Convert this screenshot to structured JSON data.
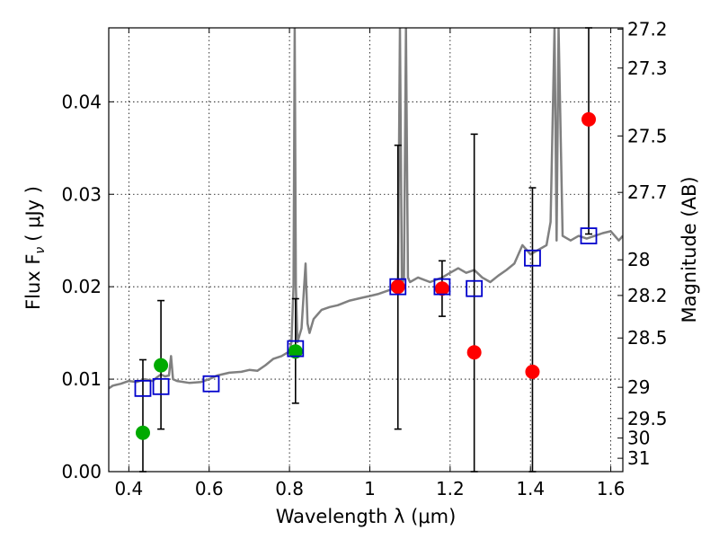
{
  "chart_data": {
    "type": "scatter",
    "xlabel": "Wavelength  λ (μm)",
    "ylabel": "Flux  F",
    "ylabel_sub": "ν",
    "ylabel_unit": "( μJy )",
    "ylabel_right": "Magnitude (AB)",
    "xlim": [
      0.35,
      1.63
    ],
    "ylim": [
      0.0,
      0.048
    ],
    "grid": true,
    "x_ticks": [
      0.4,
      0.6,
      0.8,
      1.0,
      1.2,
      1.4,
      1.6
    ],
    "x_tick_labels": [
      "0.4",
      "0.6",
      "0.8",
      "1",
      "1.2",
      "1.4",
      "1.6"
    ],
    "y_ticks": [
      0.0,
      0.01,
      0.02,
      0.03,
      0.04
    ],
    "y_tick_labels": [
      "0.00",
      "0.01",
      "0.02",
      "0.03",
      "0.04"
    ],
    "mag_ticks": [
      27.2,
      27.3,
      27.5,
      27.7,
      28,
      28.2,
      28.5,
      29,
      29.5,
      30,
      31
    ],
    "mag_tick_labels": [
      "27.2",
      "27.3",
      "27.5",
      "27.7",
      "28",
      "28.2",
      "28.5",
      "29",
      "29.5",
      "30",
      "31"
    ],
    "colors": {
      "model": "#808080",
      "green": "#00aa00",
      "red": "#ff0000",
      "box": "#0000cc",
      "error": "#000000"
    },
    "model_spectrum": {
      "x": [
        0.35,
        0.36,
        0.38,
        0.4,
        0.42,
        0.44,
        0.46,
        0.47,
        0.48,
        0.49,
        0.5,
        0.505,
        0.51,
        0.52,
        0.55,
        0.58,
        0.6,
        0.62,
        0.65,
        0.68,
        0.7,
        0.72,
        0.74,
        0.76,
        0.78,
        0.8,
        0.805,
        0.81,
        0.813,
        0.816,
        0.82,
        0.83,
        0.84,
        0.845,
        0.85,
        0.86,
        0.87,
        0.88,
        0.9,
        0.92,
        0.95,
        0.98,
        1.0,
        1.02,
        1.04,
        1.06,
        1.07,
        1.075,
        1.08,
        1.085,
        1.09,
        1.095,
        1.1,
        1.12,
        1.15,
        1.18,
        1.2,
        1.22,
        1.24,
        1.26,
        1.28,
        1.3,
        1.32,
        1.34,
        1.36,
        1.38,
        1.39,
        1.4,
        1.42,
        1.44,
        1.45,
        1.46,
        1.465,
        1.47,
        1.48,
        1.5,
        1.52,
        1.54,
        1.56,
        1.58,
        1.6,
        1.62,
        1.63
      ],
      "y": [
        0.009,
        0.0093,
        0.0095,
        0.0098,
        0.0097,
        0.01,
        0.0098,
        0.0102,
        0.0105,
        0.0103,
        0.0104,
        0.0125,
        0.01,
        0.0098,
        0.0096,
        0.0097,
        0.01,
        0.0104,
        0.0107,
        0.0108,
        0.011,
        0.0109,
        0.0115,
        0.0122,
        0.0125,
        0.013,
        0.014,
        0.02,
        0.048,
        0.02,
        0.014,
        0.0155,
        0.0225,
        0.016,
        0.015,
        0.0165,
        0.017,
        0.0175,
        0.0178,
        0.018,
        0.0185,
        0.0188,
        0.019,
        0.0192,
        0.0195,
        0.0198,
        0.02,
        0.048,
        0.02,
        0.021,
        0.048,
        0.021,
        0.0205,
        0.021,
        0.0205,
        0.021,
        0.0215,
        0.022,
        0.0215,
        0.0218,
        0.021,
        0.0205,
        0.0212,
        0.0218,
        0.0225,
        0.0245,
        0.024,
        0.0235,
        0.024,
        0.0245,
        0.027,
        0.048,
        0.025,
        0.048,
        0.0255,
        0.025,
        0.0255,
        0.0252,
        0.0255,
        0.0258,
        0.026,
        0.025,
        0.0255
      ]
    },
    "error_bars": [
      {
        "x": 0.435,
        "lo": 0.0,
        "hi": 0.0121
      },
      {
        "x": 0.48,
        "lo": 0.0046,
        "hi": 0.0185
      },
      {
        "x": 0.815,
        "lo": 0.0074,
        "hi": 0.0187
      },
      {
        "x": 1.07,
        "lo": 0.0046,
        "hi": 0.0353
      },
      {
        "x": 1.18,
        "lo": 0.0168,
        "hi": 0.0228
      },
      {
        "x": 1.26,
        "lo": 0.0,
        "hi": 0.0365
      },
      {
        "x": 1.405,
        "lo": 0.0,
        "hi": 0.0307
      },
      {
        "x": 1.545,
        "lo": 0.0257,
        "hi": 0.048
      }
    ],
    "green_points": [
      {
        "x": 0.435,
        "y": 0.0042
      },
      {
        "x": 0.48,
        "y": 0.0115
      },
      {
        "x": 0.815,
        "y": 0.013
      }
    ],
    "red_points": [
      {
        "x": 1.07,
        "y": 0.02
      },
      {
        "x": 1.18,
        "y": 0.0198
      },
      {
        "x": 1.26,
        "y": 0.0129
      },
      {
        "x": 1.405,
        "y": 0.0108
      },
      {
        "x": 1.545,
        "y": 0.0381
      }
    ],
    "model_boxes": [
      {
        "x": 0.435,
        "y": 0.009
      },
      {
        "x": 0.48,
        "y": 0.0092
      },
      {
        "x": 0.605,
        "y": 0.0095
      },
      {
        "x": 0.815,
        "y": 0.0133
      },
      {
        "x": 1.07,
        "y": 0.02
      },
      {
        "x": 1.18,
        "y": 0.02
      },
      {
        "x": 1.26,
        "y": 0.0198
      },
      {
        "x": 1.405,
        "y": 0.0231
      },
      {
        "x": 1.545,
        "y": 0.0255
      }
    ]
  }
}
